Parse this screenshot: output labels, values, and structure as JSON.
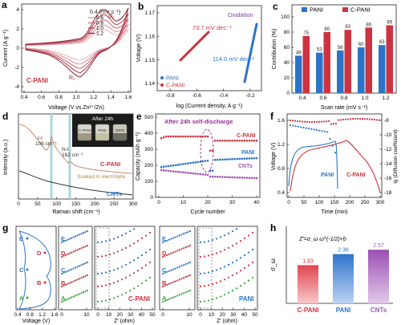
{
  "colors": {
    "pani": "#2b73c8",
    "cpani": "#cc3340",
    "cnts": "#a255b5",
    "green": "#3aa63a",
    "cv_series": [
      "#e9b7bd",
      "#d98e96",
      "#c8646f",
      "#b43d4a",
      "#8f2030"
    ]
  },
  "panel_labels": [
    "a",
    "b",
    "c",
    "d",
    "e",
    "f",
    "g",
    "h"
  ],
  "a": {
    "ylabel": "Current (A g⁻¹)",
    "xlabel": "Voltage (V vs.Zn²⁺/Zn)",
    "xticks": [
      "0.4",
      "0.6",
      "0.8",
      "1.0",
      "1.2",
      "1.4",
      "1.6"
    ],
    "yticks": [
      "4",
      "2",
      "0",
      "-2",
      "-4"
    ],
    "legend_title": "0.4 (mV s⁻¹)",
    "legend": [
      "0.4 (mV s⁻¹)",
      "0.6",
      "0.8",
      "1.0",
      "1.2"
    ],
    "annot_o": "O₁",
    "annot_r": "R₁",
    "sample": "C-PANI"
  },
  "b": {
    "ylabel": "Voltage (V)",
    "xlabel": "log (Current density, A g⁻¹)",
    "xticks": [
      "-0.8",
      "-0.6",
      "-0.4",
      "-0.2"
    ],
    "yticks": [
      "1.17",
      "1.16",
      "1.15",
      "1.14"
    ],
    "title": "Oxidation",
    "slope_cpani": "73.7 mV dec⁻¹",
    "slope_pani": "114.0 mV dec⁻¹",
    "legend": [
      "PANI",
      "C-PANI"
    ]
  },
  "c": {
    "ylabel": "Contribution (%)",
    "xlabel": "Scan rate (mV s⁻¹)",
    "legend": [
      "PANI",
      "C-PANI"
    ],
    "categories": [
      "0.4",
      "0.6",
      "0.8",
      "1.0",
      "1.2"
    ],
    "pani": [
      49,
      53,
      56,
      60,
      63
    ],
    "cpani": [
      75,
      80,
      83,
      86,
      89
    ],
    "yticks": [
      "0",
      "20",
      "40",
      "60",
      "80",
      "100"
    ]
  },
  "d": {
    "ylabel": "Intensity (a.u.)",
    "xlabel": "Raman shift (cm⁻¹)",
    "xticks": [
      "0",
      "50",
      "100",
      "150",
      "200",
      "250",
      "300"
    ],
    "annot_i": "I-I",
    "annot_i_val": "106 cm⁻¹",
    "annot_n": "N-I",
    "annot_n_val": "162 cm⁻¹",
    "soaked": "Soaked in electrolyte",
    "sample_cpani": "C-PANI",
    "sample_cnts": "CNTs",
    "inset_title": "After 24h",
    "vials": [
      "C-PANI",
      "PANI",
      "CNTs"
    ]
  },
  "e": {
    "ylabel": "Capacity (mAh g⁻¹)",
    "xlabel": "Cycle number",
    "xticks": [
      "0",
      "10",
      "20",
      "30",
      "40"
    ],
    "yticks": [
      "0",
      "100",
      "200",
      "300",
      "400",
      "500"
    ],
    "title": "After 24h self-discharge",
    "labels": [
      "C-PANI",
      "PANI",
      "CNTs"
    ]
  },
  "f": {
    "ylabel": "Voltage (V)",
    "ylabel_right": "lg (Diffusion coefficient)",
    "xlabel": "Time (min)",
    "xticks": [
      "0",
      "50",
      "100",
      "150",
      "200",
      "250",
      "300"
    ],
    "yticks": [
      "1.6",
      "1.2",
      "0.8",
      "0.4"
    ],
    "yticks_right": [
      "-8",
      "-10",
      "-12",
      "-14",
      "-16",
      "-18"
    ],
    "labels": [
      "PANI",
      "C-PANI"
    ]
  },
  "g": {
    "states": [
      "E",
      "D",
      "C",
      "B",
      "A"
    ],
    "xlabel_cv": "Voltage (V)",
    "xticks_cv": [
      "0.4",
      "0.8",
      "1.2",
      "1.6"
    ],
    "xlabel_z": "Z' (ohm)",
    "xticks_z1": [
      "0",
      "10"
    ],
    "xticks_z2": [
      "0",
      "10",
      "20",
      "30",
      "40",
      "50"
    ],
    "xticks_z3": [
      "0",
      "10"
    ],
    "xticks_z4": [
      "0",
      "10",
      "20",
      "30",
      "40",
      "50"
    ],
    "label_cpani": "C-PANI",
    "label_pani": "PANI"
  },
  "h": {
    "ylabel": "σ_ω",
    "equation": "Z'=σ_ω ω^(-1/2)+b",
    "categories": [
      "C-PANI",
      "PANI",
      "CNTs"
    ],
    "values": [
      1.83,
      2.36,
      2.57
    ],
    "value_labels": [
      "1.83",
      "2.36",
      "2.57"
    ]
  }
}
